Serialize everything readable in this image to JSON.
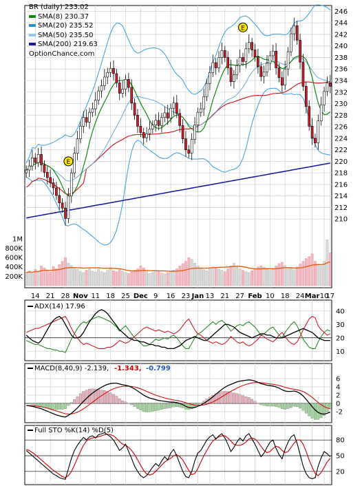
{
  "colors": {
    "sma8": "#118811",
    "sma20": "#2e8bd0",
    "sma50": "#8cc6e8",
    "sma200": "#1a1aa0",
    "up": "#ffffff",
    "down": "#cc1f2b",
    "bb": "#4aa3df",
    "volume": "#f2b8c0",
    "volavg": "#e06010",
    "adx": "#000000",
    "diplus": "#2a8a2a",
    "diminus": "#cc1f2b"
  },
  "legend": {
    "ticker": "BR (daily) 233.02",
    "sma8": "SMA(8) 230.37",
    "sma20": "SMA(20) 235.52",
    "sma50": "SMA(50) 235.50",
    "sma200": "SMA(200) 219.63",
    "site": "OptionChance.com"
  },
  "panels": {
    "adx_title": "ADX(14) 17.96",
    "macd_title": "MACD(8,40,9) -2.139,",
    "macd_v1": "-1.343,",
    "macd_v2": "-0.799",
    "sto_title": "Full STO %K(14) %D(5)"
  },
  "chart_data": {
    "type": "candlestick",
    "price_ylim": [
      208,
      247
    ],
    "price_ticks": [
      "246",
      "244",
      "242",
      "240",
      "238",
      "236",
      "234",
      "232",
      "230",
      "228",
      "226",
      "224",
      "222",
      "220",
      "218",
      "216",
      "214",
      "212",
      "210"
    ],
    "volume_ticks": [
      "1M",
      "800K",
      "600K",
      "400K",
      "200K"
    ],
    "x_labels": [
      "14",
      "21",
      "28",
      "Nov",
      "11",
      "18",
      "25",
      "Dec",
      "9",
      "16",
      "23",
      "Jan",
      "13",
      "21",
      "27",
      "Feb",
      "10",
      "18",
      "24",
      "Mar",
      "10",
      "17"
    ],
    "earnings_markers": [
      "E",
      "E"
    ],
    "close": [
      218.5,
      219.2,
      220.6,
      219.8,
      221.2,
      219.4,
      218.1,
      217.2,
      216.3,
      215.4,
      214.1,
      212.8,
      211.9,
      210.1,
      214.0,
      218.0,
      221.4,
      223.9,
      226.1,
      227.6,
      226.8,
      228.5,
      229.1,
      230.6,
      232.2,
      233.1,
      234.6,
      235.4,
      236.1,
      235.2,
      233.6,
      231.8,
      232.5,
      234.2,
      232.8,
      230.1,
      228.0,
      226.1,
      225.0,
      224.1,
      224.8,
      225.6,
      226.3,
      227.1,
      226.2,
      227.6,
      228.4,
      227.5,
      229.2,
      230.1,
      228.3,
      226.2,
      223.9,
      222.0,
      221.4,
      223.8,
      226.3,
      228.5,
      229.1,
      231.2,
      233.5,
      235.4,
      237.1,
      236.2,
      238.0,
      239.2,
      238.0,
      236.2,
      233.8,
      235.0,
      236.6,
      238.0,
      237.3,
      239.5,
      240.6,
      239.3,
      238.1,
      236.4,
      234.7,
      235.5,
      237.0,
      238.3,
      239.1,
      236.2,
      234.5,
      233.2,
      236.0,
      239.0,
      242.1,
      243.5,
      241.0,
      237.2,
      233.0,
      229.5,
      226.1,
      224.0,
      223.2,
      227.0,
      229.8,
      232.1,
      233.6,
      233.0
    ],
    "open": [
      218.0,
      218.5,
      219.2,
      220.6,
      219.8,
      221.2,
      219.4,
      218.1,
      217.2,
      216.3,
      215.4,
      214.1,
      212.8,
      211.9,
      210.1,
      214.0,
      218.0,
      221.4,
      223.9,
      226.1,
      227.6,
      226.8,
      228.5,
      229.1,
      230.6,
      232.2,
      233.1,
      234.6,
      235.4,
      236.1,
      235.2,
      233.6,
      231.8,
      232.5,
      234.2,
      232.8,
      230.1,
      228.0,
      226.1,
      225.0,
      224.1,
      224.8,
      225.6,
      226.3,
      227.1,
      226.2,
      227.6,
      228.4,
      227.5,
      229.2,
      230.1,
      228.3,
      226.2,
      223.9,
      222.0,
      221.4,
      223.8,
      226.3,
      228.5,
      229.1,
      231.2,
      233.5,
      235.4,
      237.1,
      236.2,
      238.0,
      239.2,
      238.0,
      236.2,
      233.8,
      235.0,
      236.6,
      238.0,
      237.3,
      239.5,
      240.6,
      239.3,
      238.1,
      236.4,
      234.7,
      235.5,
      237.0,
      238.3,
      239.1,
      236.2,
      234.5,
      233.2,
      236.0,
      239.0,
      242.1,
      243.5,
      241.0,
      237.2,
      233.0,
      229.5,
      226.1,
      224.0,
      223.2,
      227.0,
      229.8,
      232.1,
      233.6
    ],
    "volume": [
      280,
      310,
      260,
      350,
      300,
      420,
      380,
      330,
      290,
      410,
      360,
      450,
      520,
      600,
      480,
      430,
      390,
      350,
      300,
      280,
      330,
      360,
      310,
      290,
      350,
      300,
      280,
      330,
      370,
      320,
      300,
      340,
      310,
      280,
      260,
      300,
      330,
      360,
      420,
      380,
      300,
      260,
      280,
      320,
      300,
      270,
      250,
      280,
      300,
      330,
      360,
      420,
      470,
      520,
      600,
      560,
      480,
      420,
      380,
      340,
      320,
      360,
      400,
      380,
      350,
      330,
      300,
      360,
      420,
      480,
      390,
      360,
      330,
      300,
      280,
      320,
      360,
      400,
      420,
      390,
      350,
      330,
      370,
      420,
      470,
      500,
      430,
      380,
      360,
      340,
      400,
      460,
      520,
      580,
      620,
      680,
      520,
      460,
      420,
      520,
      980,
      700
    ],
    "adx": [
      22,
      20,
      18,
      17,
      16,
      18,
      22,
      26,
      30,
      33,
      35,
      36,
      34,
      30,
      26,
      22,
      20,
      20,
      21,
      24,
      28,
      32,
      35,
      38,
      40,
      41,
      40,
      38,
      35,
      32,
      29,
      26,
      24,
      22,
      20,
      19,
      18,
      18,
      17,
      17,
      16,
      15,
      15,
      14,
      14,
      13,
      13,
      12,
      12,
      12,
      13,
      14,
      16,
      18,
      19,
      20,
      21,
      20,
      19,
      18,
      18,
      20,
      22,
      24,
      26,
      28,
      30,
      30,
      29,
      28,
      26,
      24,
      23,
      22,
      21,
      20,
      21,
      22,
      23,
      23,
      22,
      22,
      21,
      20,
      20,
      20,
      21,
      22,
      23,
      24,
      25,
      26,
      27,
      26,
      25,
      24,
      22,
      20,
      19,
      18,
      18,
      18
    ],
    "diplus": [
      18,
      17,
      16,
      15,
      15,
      14,
      13,
      12,
      12,
      11,
      11,
      10,
      10,
      9,
      14,
      19,
      23,
      27,
      30,
      32,
      31,
      33,
      34,
      35,
      36,
      35,
      34,
      33,
      32,
      30,
      28,
      25,
      27,
      29,
      26,
      23,
      20,
      18,
      16,
      14,
      14,
      15,
      17,
      19,
      18,
      19,
      20,
      19,
      21,
      22,
      20,
      17,
      14,
      12,
      12,
      16,
      20,
      23,
      24,
      26,
      28,
      30,
      32,
      30,
      32,
      33,
      31,
      28,
      25,
      27,
      29,
      30,
      29,
      31,
      32,
      30,
      28,
      25,
      22,
      23,
      25,
      27,
      28,
      25,
      22,
      20,
      24,
      27,
      30,
      32,
      29,
      24,
      19,
      16,
      13,
      12,
      12,
      17,
      21,
      24,
      26,
      25
    ],
    "diminus": [
      24,
      25,
      26,
      27,
      27,
      28,
      29,
      30,
      31,
      32,
      33,
      34,
      35,
      36,
      32,
      27,
      23,
      20,
      17,
      15,
      16,
      15,
      14,
      13,
      12,
      12,
      12,
      13,
      13,
      14,
      16,
      18,
      17,
      16,
      17,
      19,
      21,
      23,
      25,
      27,
      28,
      27,
      26,
      25,
      26,
      25,
      24,
      25,
      24,
      23,
      24,
      26,
      29,
      32,
      34,
      30,
      26,
      23,
      22,
      20,
      18,
      17,
      16,
      17,
      16,
      15,
      16,
      18,
      21,
      19,
      17,
      16,
      17,
      15,
      14,
      15,
      17,
      19,
      22,
      21,
      19,
      18,
      17,
      19,
      22,
      24,
      21,
      18,
      16,
      15,
      17,
      21,
      26,
      30,
      34,
      36,
      35,
      29,
      26,
      24,
      22,
      23
    ],
    "macd": [
      -0.5,
      -0.6,
      -0.7,
      -0.9,
      -1.1,
      -1.3,
      -1.6,
      -1.9,
      -2.2,
      -2.5,
      -2.8,
      -3.0,
      -3.2,
      -3.3,
      -2.9,
      -2.4,
      -1.8,
      -1.1,
      -0.3,
      0.5,
      1.2,
      1.9,
      2.5,
      3.0,
      3.5,
      3.9,
      4.3,
      4.6,
      4.8,
      4.9,
      4.9,
      4.7,
      4.5,
      4.4,
      4.2,
      3.9,
      3.5,
      3.0,
      2.5,
      2.0,
      1.6,
      1.3,
      1.1,
      0.9,
      0.7,
      0.6,
      0.5,
      0.4,
      0.3,
      0.3,
      0.2,
      0.0,
      -0.3,
      -0.7,
      -1.0,
      -1.1,
      -1.0,
      -0.7,
      -0.4,
      0.0,
      0.5,
      1.0,
      1.6,
      2.2,
      2.8,
      3.4,
      3.9,
      4.3,
      4.6,
      4.9,
      5.2,
      5.4,
      5.5,
      5.6,
      5.7,
      5.6,
      5.4,
      5.1,
      4.8,
      4.6,
      4.4,
      4.3,
      4.2,
      4.0,
      3.7,
      3.3,
      3.0,
      2.9,
      2.9,
      3.0,
      2.8,
      2.4,
      1.8,
      1.0,
      0.1,
      -0.8,
      -1.6,
      -2.2,
      -2.5,
      -2.6,
      -2.4,
      -2.1
    ],
    "sto_k": [
      60,
      55,
      50,
      45,
      40,
      35,
      30,
      25,
      20,
      15,
      12,
      8,
      6,
      5,
      25,
      45,
      60,
      70,
      78,
      85,
      80,
      86,
      88,
      84,
      90,
      92,
      94,
      90,
      86,
      80,
      70,
      60,
      65,
      72,
      58,
      45,
      30,
      20,
      12,
      8,
      12,
      20,
      28,
      35,
      30,
      40,
      48,
      42,
      55,
      62,
      50,
      35,
      20,
      10,
      8,
      20,
      40,
      55,
      60,
      70,
      80,
      86,
      90,
      82,
      88,
      92,
      84,
      72,
      58,
      66,
      76,
      84,
      78,
      88,
      92,
      82,
      72,
      60,
      48,
      55,
      66,
      76,
      80,
      64,
      52,
      44,
      62,
      76,
      86,
      90,
      74,
      52,
      30,
      16,
      8,
      6,
      8,
      30,
      46,
      58,
      54,
      48
    ],
    "sto_d": [
      62,
      60,
      56,
      52,
      47,
      42,
      37,
      32,
      27,
      22,
      18,
      14,
      10,
      8,
      12,
      20,
      32,
      45,
      58,
      70,
      78,
      82,
      84,
      85,
      86,
      88,
      90,
      91,
      90,
      88,
      83,
      77,
      72,
      70,
      66,
      60,
      52,
      42,
      32,
      22,
      15,
      13,
      15,
      20,
      26,
      32,
      38,
      42,
      45,
      50,
      52,
      48,
      42,
      32,
      22,
      14,
      16,
      25,
      38,
      50,
      60,
      70,
      78,
      83,
      86,
      88,
      88,
      84,
      78,
      72,
      70,
      70,
      72,
      76,
      82,
      84,
      82,
      76,
      68,
      60,
      56,
      58,
      64,
      68,
      66,
      60,
      56,
      58,
      66,
      74,
      80,
      80,
      72,
      58,
      42,
      28,
      16,
      12,
      18,
      28,
      38,
      45
    ]
  }
}
